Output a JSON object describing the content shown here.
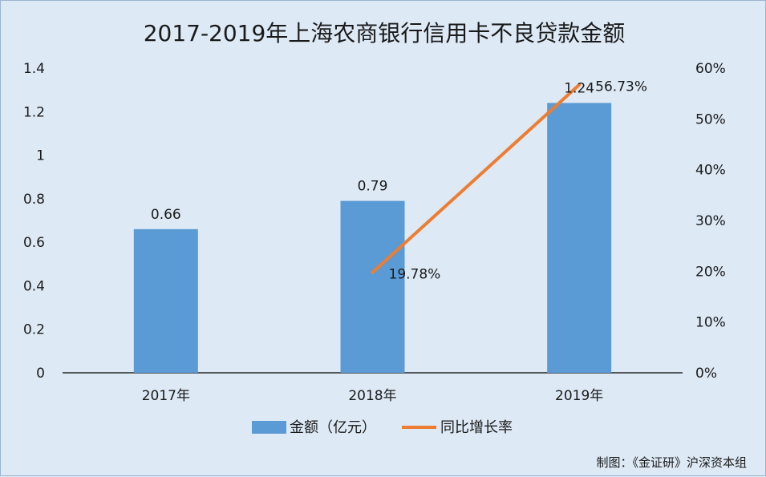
{
  "chart_data": {
    "type": "bar",
    "title": "2017-2019年上海农商银行信用卡不良贷款金额",
    "categories": [
      "2017年",
      "2018年",
      "2019年"
    ],
    "series": [
      {
        "name": "金额（亿元）",
        "type": "bar",
        "axis": "left",
        "color": "#5b9bd5",
        "values": [
          0.66,
          0.79,
          1.24
        ],
        "labels": [
          "0.66",
          "0.79",
          "1.24"
        ]
      },
      {
        "name": "同比增长率",
        "type": "line",
        "axis": "right",
        "color": "#ed7d31",
        "values": [
          null,
          19.78,
          56.73
        ],
        "labels": [
          "",
          "19.78%",
          "56.73%"
        ]
      }
    ],
    "y_left": {
      "min": 0,
      "max": 1.4,
      "ticks": [
        "0",
        "0.2",
        "0.4",
        "0.6",
        "0.8",
        "1",
        "1.2",
        "1.4"
      ]
    },
    "y_right": {
      "min": 0,
      "max": 60,
      "ticks": [
        "0%",
        "10%",
        "20%",
        "30%",
        "40%",
        "50%",
        "60%"
      ]
    },
    "grid": false,
    "legend_position": "bottom"
  },
  "source_note": "制图：《金证研》沪深资本组"
}
